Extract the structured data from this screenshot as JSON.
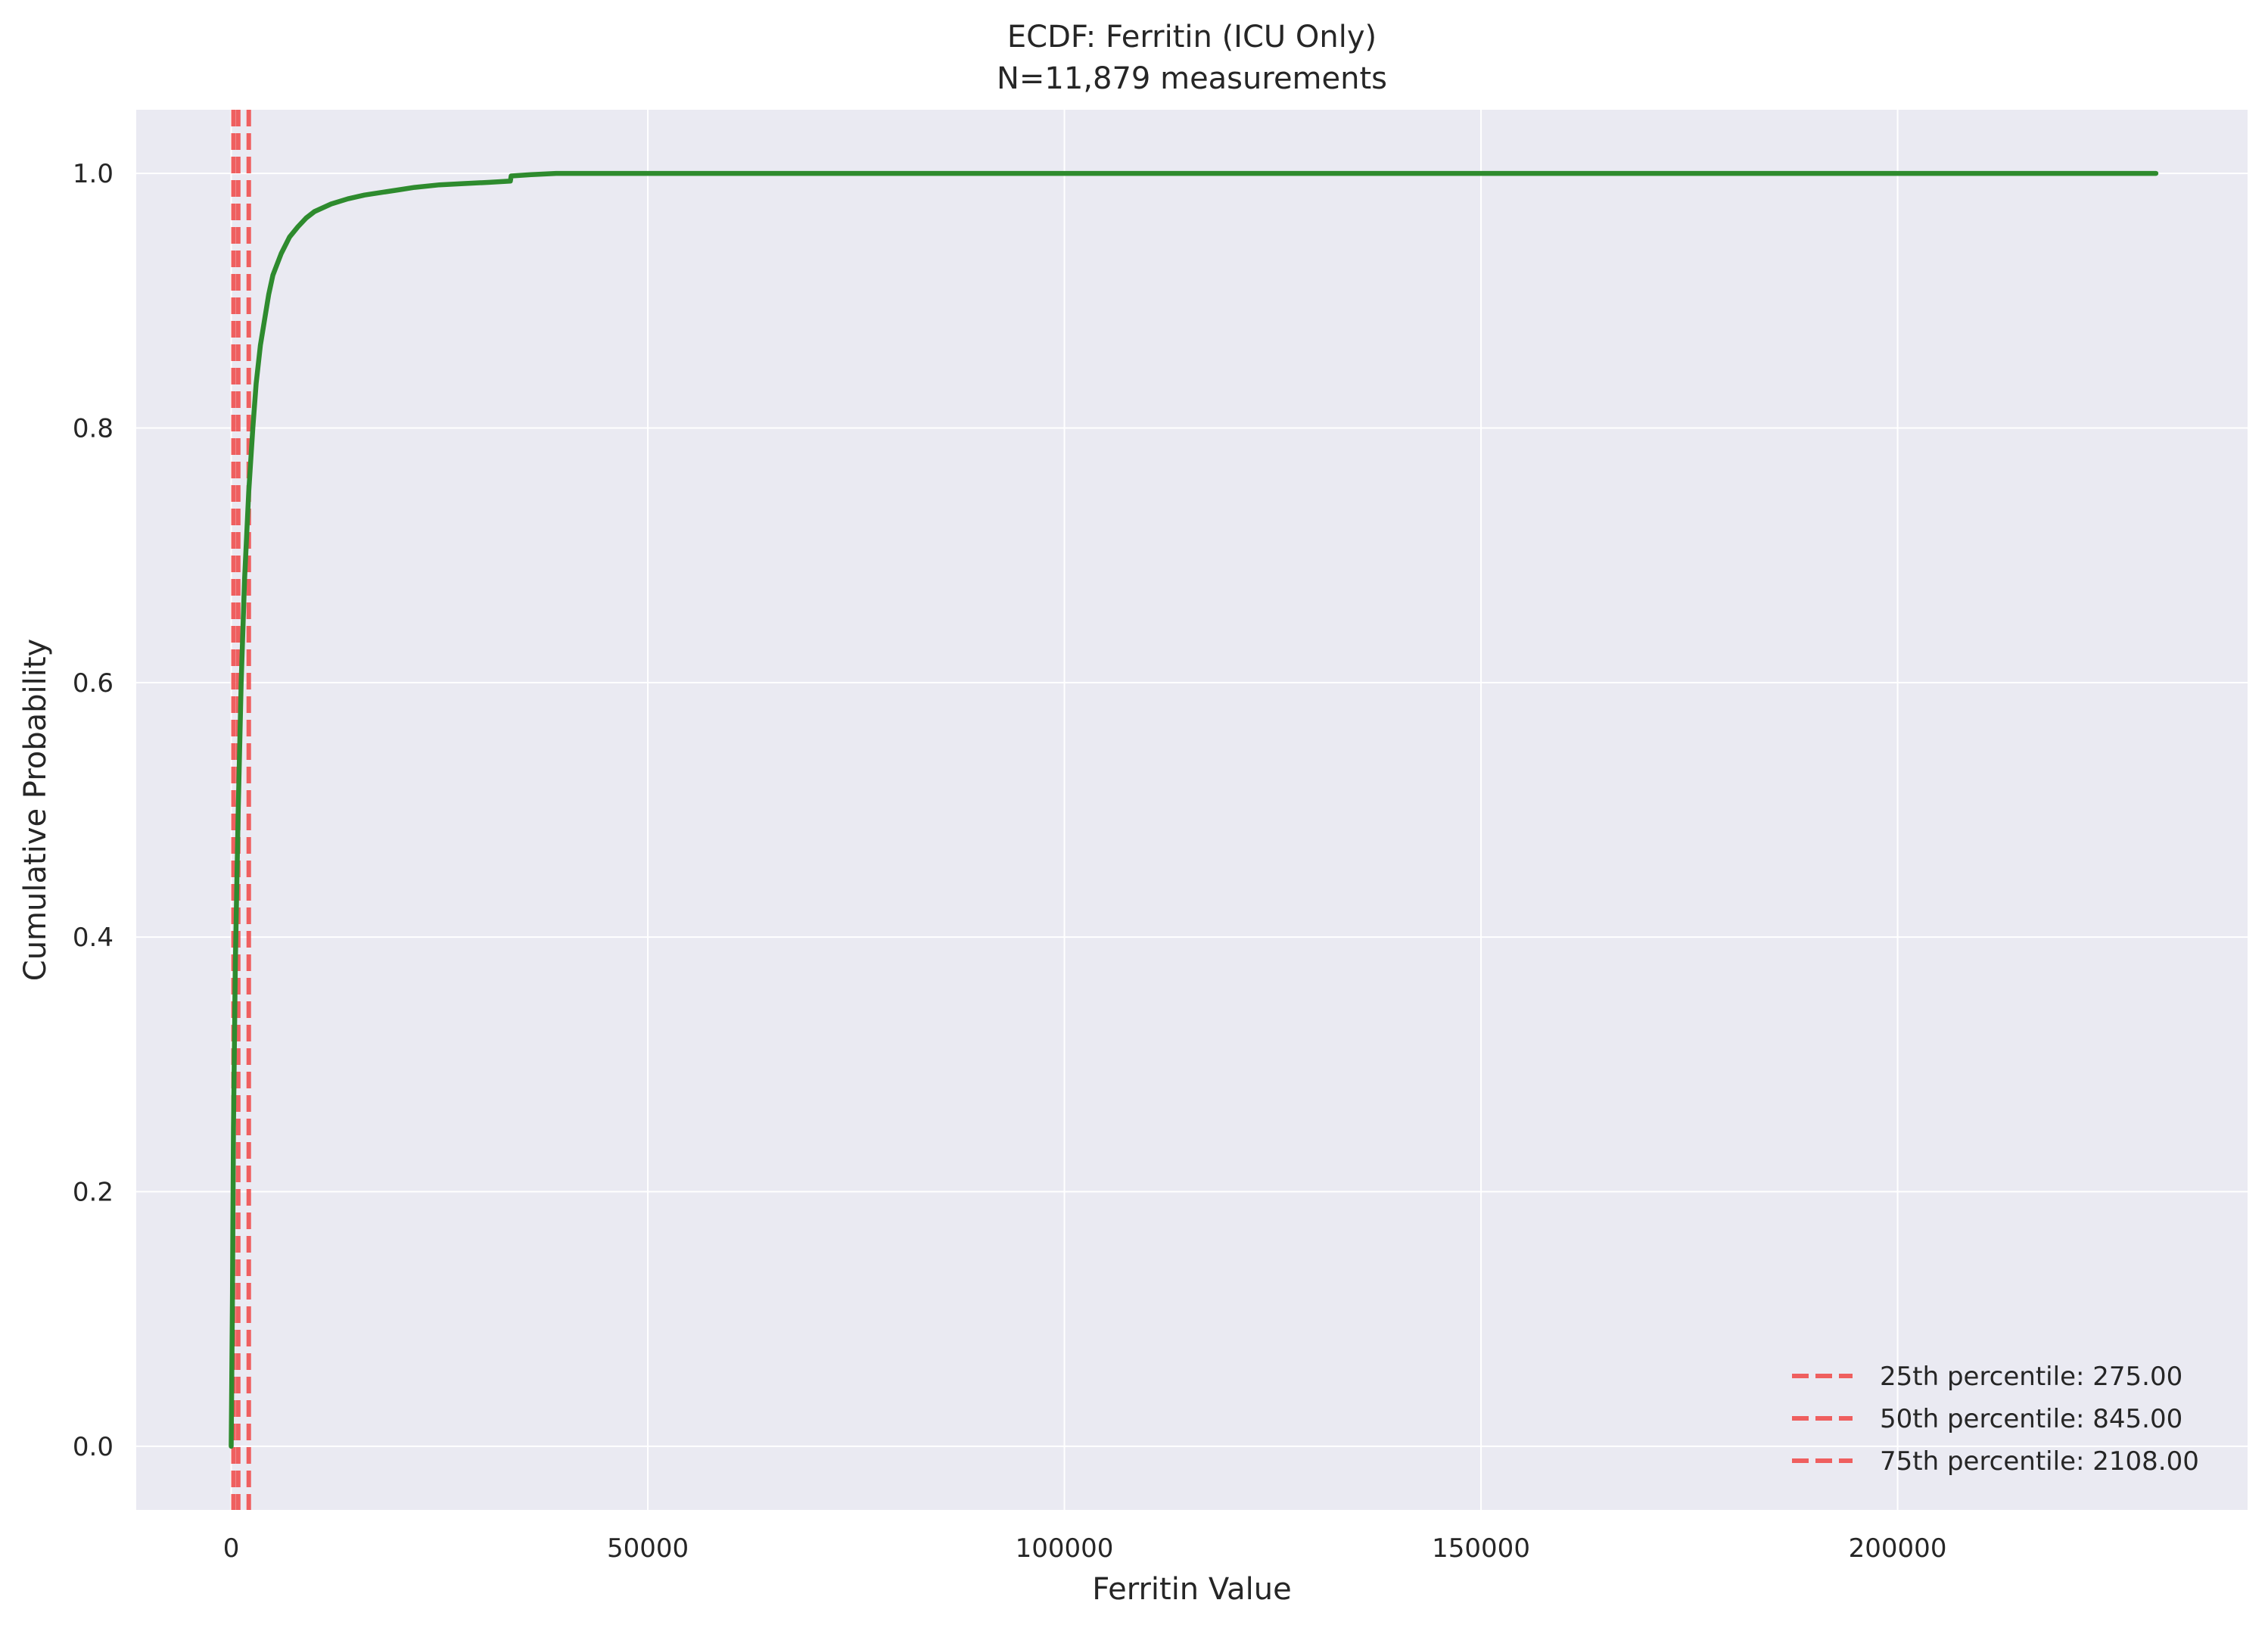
{
  "chart_data": {
    "type": "line",
    "title": "ECDF: Ferritin (ICU Only)",
    "subtitle": "N=11,879 measurements",
    "xlabel": "Ferritin Value",
    "ylabel": "Cumulative Probability",
    "xlim": [
      -11400,
      242000
    ],
    "ylim": [
      -0.05,
      1.05
    ],
    "xticks": [
      0,
      50000,
      100000,
      150000,
      200000
    ],
    "xtick_labels": [
      "0",
      "50000",
      "100000",
      "150000",
      "200000"
    ],
    "yticks": [
      0.0,
      0.2,
      0.4,
      0.6,
      0.8,
      1.0
    ],
    "ytick_labels": [
      "0.0",
      "0.2",
      "0.4",
      "0.6",
      "0.8",
      "1.0"
    ],
    "grid": true,
    "legend_position": "lower-right",
    "series": [
      {
        "color": "#2e8b2e",
        "x": [
          0,
          150,
          275,
          500,
          845,
          1200,
          1600,
          2108,
          2600,
          3000,
          3500,
          4000,
          4500,
          5000,
          6000,
          7000,
          8000,
          9000,
          10000,
          12000,
          14000,
          16000,
          18000,
          20000,
          22000,
          25000,
          28000,
          31000,
          33500,
          33600,
          36000,
          39000,
          60000,
          100000,
          150000,
          200000,
          231000
        ],
        "y": [
          0.0,
          0.12,
          0.25,
          0.38,
          0.5,
          0.6,
          0.68,
          0.75,
          0.8,
          0.835,
          0.865,
          0.885,
          0.905,
          0.92,
          0.937,
          0.95,
          0.958,
          0.965,
          0.97,
          0.976,
          0.98,
          0.983,
          0.985,
          0.987,
          0.989,
          0.991,
          0.992,
          0.993,
          0.994,
          0.998,
          0.999,
          1.0,
          1.0,
          1.0,
          1.0,
          1.0,
          1.0
        ]
      }
    ],
    "percentile_lines": [
      {
        "label": "25th percentile: 275.00",
        "x": 275,
        "color": "#f05050"
      },
      {
        "label": "50th percentile: 845.00",
        "x": 845,
        "color": "#f05050"
      },
      {
        "label": "75th percentile: 2108.00",
        "x": 2108,
        "color": "#f05050"
      }
    ],
    "colors": {
      "background": "#eaeaf2",
      "grid": "#ffffff"
    }
  }
}
